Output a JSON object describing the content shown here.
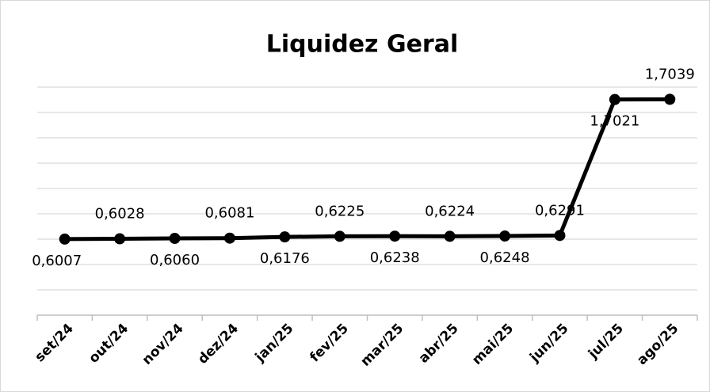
{
  "chart_data": {
    "type": "line",
    "title": "Liquidez Geral",
    "categories": [
      "set/24",
      "out/24",
      "nov/24",
      "dez/24",
      "jan/25",
      "fev/25",
      "mar/25",
      "abr/25",
      "mai/25",
      "jun/25",
      "jul/25",
      "ago/25"
    ],
    "series": [
      {
        "name": "Liquidez Geral",
        "color": "#000000",
        "values": [
          0.6007,
          0.6028,
          0.606,
          0.6081,
          0.6176,
          0.6225,
          0.6238,
          0.6224,
          0.6248,
          0.6291,
          1.7021,
          1.7039
        ],
        "value_labels": [
          "0,6007",
          "0,6028",
          "0,6060",
          "0,6081",
          "0,6176",
          "0,6225",
          "0,6238",
          "0,6224",
          "0,6248",
          "0,6291",
          "1,7021",
          "1,7039"
        ]
      }
    ],
    "ylim": [
      0,
      1.8
    ],
    "yticks": [
      0,
      0.2,
      0.4,
      0.6,
      0.8,
      1,
      1.2,
      1.4,
      1.6,
      1.8
    ],
    "grid": true
  }
}
